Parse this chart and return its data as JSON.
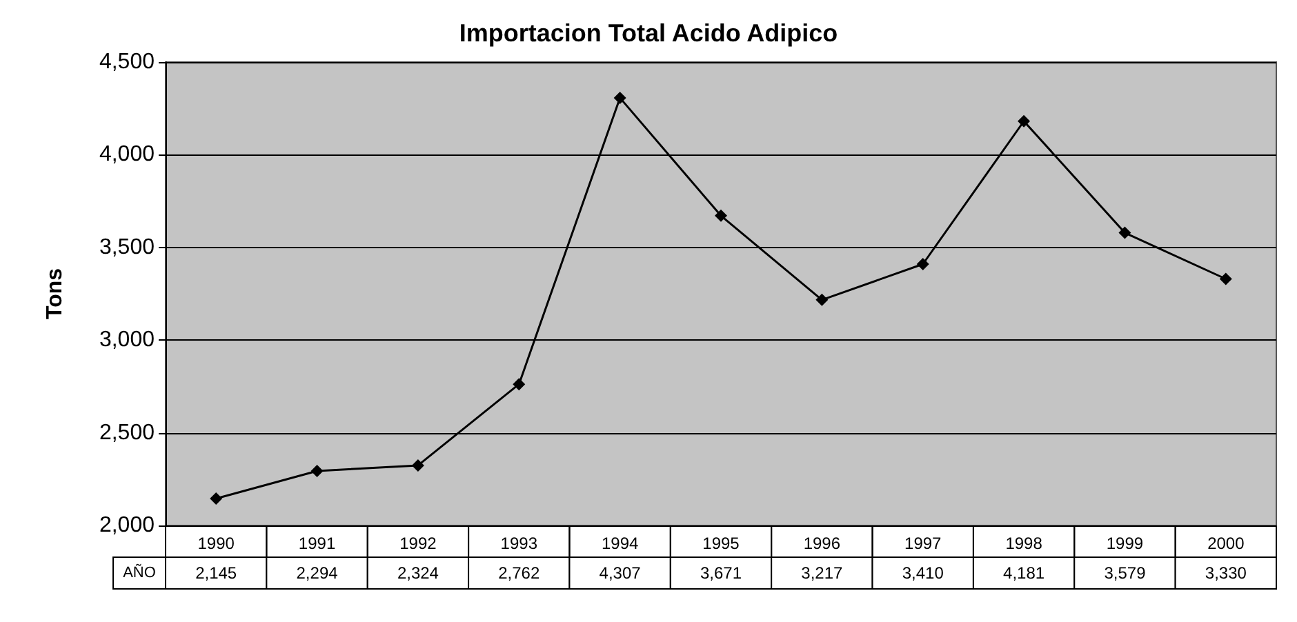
{
  "chart_data": {
    "type": "line",
    "title": "Importacion Total Acido Adipico",
    "ylabel": "Tons",
    "categories": [
      "1990",
      "1991",
      "1992",
      "1993",
      "1994",
      "1995",
      "1996",
      "1997",
      "1998",
      "1999",
      "2000"
    ],
    "series": [
      {
        "name": "AÑO",
        "color": "#000000",
        "values": [
          2145,
          2294,
          2324,
          2762,
          4307,
          3671,
          3217,
          3410,
          4181,
          3579,
          3330
        ],
        "value_labels": [
          "2,145",
          "2,294",
          "2,324",
          "2,762",
          "4,307",
          "3,671",
          "3,217",
          "3,410",
          "4,181",
          "3,579",
          "3,330"
        ]
      }
    ],
    "ylim": [
      2000,
      4500
    ],
    "yticks": [
      {
        "value": 2000,
        "label": "2,000"
      },
      {
        "value": 2500,
        "label": "2,500"
      },
      {
        "value": 3000,
        "label": "3,000"
      },
      {
        "value": 3500,
        "label": "3,500"
      },
      {
        "value": 4000,
        "label": "4,000"
      },
      {
        "value": 4500,
        "label": "4,500"
      }
    ],
    "grid": "y",
    "marker": "diamond",
    "line_style": "solid"
  }
}
